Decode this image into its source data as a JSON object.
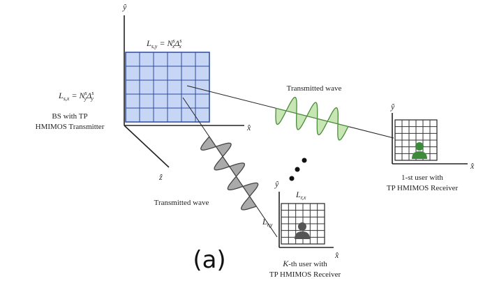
{
  "axes": {
    "y": "ŷ",
    "x": "x̂",
    "z": "ẑ"
  },
  "transmitter": {
    "line1": "BS with TP",
    "line2": "HMIMOS Transmitter",
    "width_label": [
      "L",
      "s,y",
      "= N",
      "x",
      "s",
      "Δ",
      "s",
      "x"
    ],
    "height_label": [
      "L",
      "s,x",
      "= N",
      "y",
      "s",
      "Δ",
      "s",
      "y"
    ]
  },
  "waves": {
    "to_user_1": "Transmitted wave",
    "to_user_k": "Transmitted wave"
  },
  "user_1": {
    "y_axis": "ŷ",
    "x_axis": "x̂",
    "line1": "1-st user with",
    "line2": "TP HMIMOS Receiver"
  },
  "user_k": {
    "y_axis": "ŷ",
    "x_axis": "x̂",
    "line1_symbol": "K",
    "line1": "-th user with",
    "line2": "TP HMIMOS Receiver",
    "width_label": [
      "L",
      "r,x"
    ],
    "height_label": [
      "L",
      "r,y"
    ]
  },
  "caption": "(a)"
}
